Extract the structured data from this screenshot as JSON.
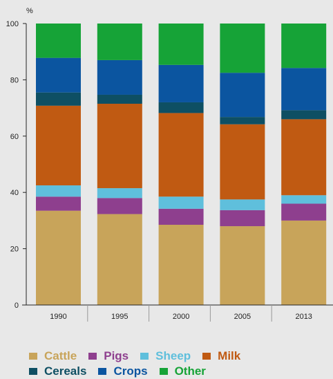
{
  "chart_data": {
    "type": "bar",
    "stacked": true,
    "unit_label": "%",
    "title": "",
    "xlabel": "",
    "ylabel": "",
    "ylim": [
      0,
      100
    ],
    "yticks": [
      0,
      20,
      40,
      60,
      80,
      100
    ],
    "grid": false,
    "legend_position": "bottom",
    "categories": [
      "1990",
      "1995",
      "2000",
      "2005",
      "2013"
    ],
    "series": [
      {
        "name": "Cattle",
        "color": "#c8a45a",
        "text_color": "#c8a45a",
        "values": [
          33.5,
          32.3,
          28.5,
          28.0,
          30.0
        ]
      },
      {
        "name": "Pigs",
        "color": "#8e3f8e",
        "text_color": "#8e3f8e",
        "values": [
          5.0,
          5.7,
          5.7,
          5.7,
          6.0
        ]
      },
      {
        "name": "Sheep",
        "color": "#5fbfdc",
        "text_color": "#5fbfdc",
        "values": [
          4.0,
          3.5,
          4.3,
          3.8,
          3.0
        ]
      },
      {
        "name": "Milk",
        "color": "#c05a12",
        "text_color": "#c05a12",
        "values": [
          28.3,
          30.0,
          29.7,
          26.7,
          27.0
        ]
      },
      {
        "name": "Cereals",
        "color": "#0e4f63",
        "text_color": "#0e4f63",
        "values": [
          4.7,
          3.2,
          3.8,
          2.6,
          3.2
        ]
      },
      {
        "name": "Crops",
        "color": "#0b55a0",
        "text_color": "#0b55a0",
        "values": [
          12.3,
          12.3,
          13.3,
          15.7,
          15.0
        ]
      },
      {
        "name": "Other",
        "color": "#16a337",
        "text_color": "#16a337",
        "values": [
          12.2,
          13.0,
          14.7,
          17.5,
          15.8
        ]
      }
    ]
  }
}
